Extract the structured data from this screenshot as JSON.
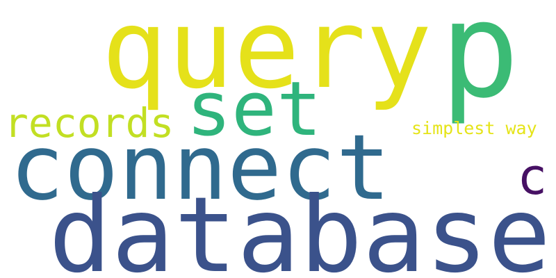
{
  "words": [
    {
      "id": "query",
      "text": "query",
      "color": "#e5e11a"
    },
    {
      "id": "p",
      "text": "p",
      "color": "#3bbb75"
    },
    {
      "id": "set",
      "text": "set",
      "color": "#2fb47c"
    },
    {
      "id": "records",
      "text": "records",
      "color": "#c2df23"
    },
    {
      "id": "simplest_way",
      "text": "simplest way",
      "color": "#e5e419"
    },
    {
      "id": "connect",
      "text": "connect",
      "color": "#306a8e"
    },
    {
      "id": "c",
      "text": "c",
      "color": "#471164"
    },
    {
      "id": "database",
      "text": "database",
      "color": "#3b528b"
    }
  ]
}
